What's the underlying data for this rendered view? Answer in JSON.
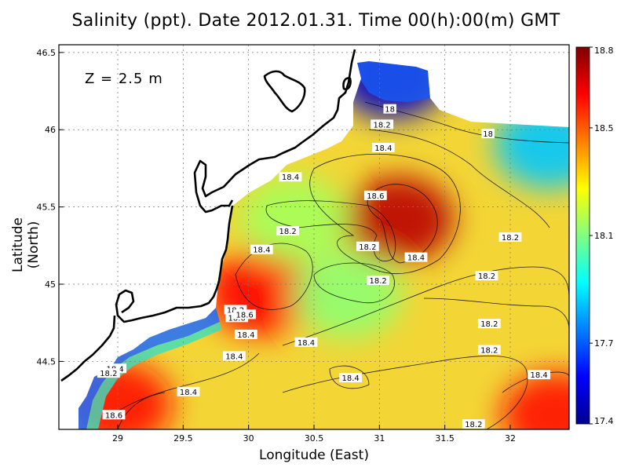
{
  "chart_data": {
    "type": "heatmap",
    "title": "Salinity (ppt). Date 2012.01.31. Time 00(h):00(m) GMT",
    "annotation": "Z = 2.5 m",
    "xlabel": "Longitude (East)",
    "ylabel": "Latitude (North)",
    "xlim": [
      28.55,
      32.45
    ],
    "ylim": [
      44.06,
      46.55
    ],
    "xticks": [
      "29",
      "29.5",
      "30",
      "30.5",
      "31",
      "31.5",
      "32"
    ],
    "yticks": [
      "44.5",
      "45",
      "45.5",
      "46",
      "46.5"
    ],
    "grid": true,
    "colorbar": {
      "min": 17.4,
      "max": 18.8,
      "ticks": [
        "17.4",
        "17.7",
        "18.1",
        "18.5",
        "18.8"
      ],
      "colormap": "jet"
    },
    "salinity_centers": [
      {
        "lon": 31.15,
        "lat": 45.42,
        "value": 18.72
      },
      {
        "lon": 30.1,
        "lat": 44.95,
        "value": 18.62
      },
      {
        "lon": 29.0,
        "lat": 44.22,
        "value": 18.6
      },
      {
        "lon": 32.35,
        "lat": 44.15,
        "value": 18.6
      },
      {
        "lon": 30.35,
        "lat": 45.42,
        "value": 18.15
      },
      {
        "lon": 30.75,
        "lat": 44.93,
        "value": 18.12
      },
      {
        "lon": 31.1,
        "lat": 46.35,
        "value": 17.5
      },
      {
        "lon": 32.3,
        "lat": 45.9,
        "value": 17.85
      }
    ],
    "contour_labels": [
      {
        "text": "18",
        "lon": 31.08,
        "lat": 46.13
      },
      {
        "text": "18.2",
        "lon": 31.02,
        "lat": 46.03
      },
      {
        "text": "18",
        "lon": 31.83,
        "lat": 45.97
      },
      {
        "text": "18.4",
        "lon": 31.03,
        "lat": 45.88
      },
      {
        "text": "18.4",
        "lon": 30.32,
        "lat": 45.69
      },
      {
        "text": "18.6",
        "lon": 30.97,
        "lat": 45.57
      },
      {
        "text": "18.2",
        "lon": 30.3,
        "lat": 45.34
      },
      {
        "text": "18.2",
        "lon": 30.91,
        "lat": 45.24
      },
      {
        "text": "18.4",
        "lon": 31.28,
        "lat": 45.17
      },
      {
        "text": "18.2",
        "lon": 32.0,
        "lat": 45.3
      },
      {
        "text": "18.4",
        "lon": 30.1,
        "lat": 45.22
      },
      {
        "text": "18.2",
        "lon": 30.99,
        "lat": 45.02
      },
      {
        "text": "18.2",
        "lon": 31.82,
        "lat": 45.05
      },
      {
        "text": "18.2",
        "lon": 29.9,
        "lat": 44.83
      },
      {
        "text": "18.6",
        "lon": 29.91,
        "lat": 44.78
      },
      {
        "text": "18.6",
        "lon": 29.97,
        "lat": 44.8
      },
      {
        "text": "18.4",
        "lon": 29.98,
        "lat": 44.67
      },
      {
        "text": "18.4",
        "lon": 30.44,
        "lat": 44.62
      },
      {
        "text": "18.2",
        "lon": 31.84,
        "lat": 44.74
      },
      {
        "text": "18.2",
        "lon": 31.84,
        "lat": 44.57
      },
      {
        "text": "18.4",
        "lon": 29.89,
        "lat": 44.53
      },
      {
        "text": "18.4",
        "lon": 28.98,
        "lat": 44.45
      },
      {
        "text": "18.2",
        "lon": 28.93,
        "lat": 44.42
      },
      {
        "text": "18.4",
        "lon": 30.78,
        "lat": 44.39
      },
      {
        "text": "18.4",
        "lon": 32.22,
        "lat": 44.41
      },
      {
        "text": "18.4",
        "lon": 29.54,
        "lat": 44.3
      },
      {
        "text": "18.6",
        "lon": 28.97,
        "lat": 44.15
      },
      {
        "text": "18.2",
        "lon": 31.72,
        "lat": 44.09
      }
    ]
  }
}
